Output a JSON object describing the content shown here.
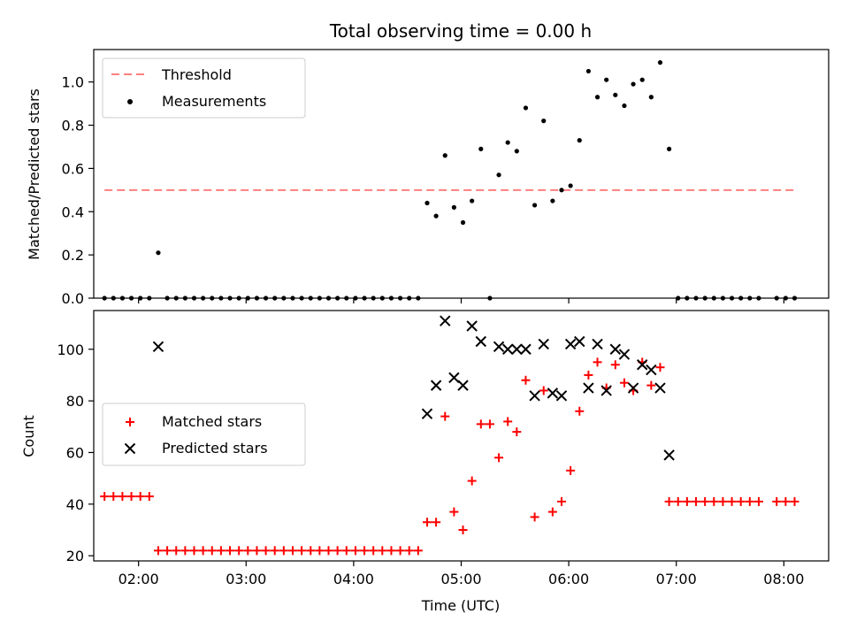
{
  "chart_data": [
    {
      "type": "scatter",
      "title": "Total observing time = 0.00 h",
      "xlabel": "",
      "ylabel": "Matched/Predicted stars",
      "ylim": [
        0,
        1.15
      ],
      "xlim": [
        "01:35",
        "08:25"
      ],
      "yticks": [
        "0.0",
        "0.2",
        "0.4",
        "0.6",
        "0.8",
        "1.0"
      ],
      "legend_position": "top-left",
      "threshold": {
        "name": "Threshold",
        "value": 0.5,
        "x_start": "01:41",
        "x_end": "08:06",
        "color": "#ff7f7f"
      },
      "series": [
        {
          "name": "Measurements",
          "color": "#000000",
          "points": [
            [
              "01:41",
              0
            ],
            [
              "01:46",
              0
            ],
            [
              "01:51",
              0
            ],
            [
              "01:56",
              0
            ],
            [
              "02:01",
              0
            ],
            [
              "02:06",
              0
            ],
            [
              "02:11",
              0.21
            ],
            [
              "02:16",
              0
            ],
            [
              "02:21",
              0
            ],
            [
              "02:26",
              0
            ],
            [
              "02:31",
              0
            ],
            [
              "02:36",
              0
            ],
            [
              "02:41",
              0
            ],
            [
              "02:46",
              0
            ],
            [
              "02:51",
              0
            ],
            [
              "02:56",
              0
            ],
            [
              "03:01",
              0
            ],
            [
              "03:06",
              0
            ],
            [
              "03:11",
              0
            ],
            [
              "03:16",
              0
            ],
            [
              "03:21",
              0
            ],
            [
              "03:26",
              0
            ],
            [
              "03:31",
              0
            ],
            [
              "03:36",
              0
            ],
            [
              "03:41",
              0
            ],
            [
              "03:46",
              0
            ],
            [
              "03:51",
              0
            ],
            [
              "03:56",
              0
            ],
            [
              "04:01",
              0
            ],
            [
              "04:06",
              0
            ],
            [
              "04:11",
              0
            ],
            [
              "04:16",
              0
            ],
            [
              "04:21",
              0
            ],
            [
              "04:26",
              0
            ],
            [
              "04:31",
              0
            ],
            [
              "04:36",
              0
            ],
            [
              "04:41",
              0.44
            ],
            [
              "04:46",
              0.38
            ],
            [
              "04:51",
              0.66
            ],
            [
              "04:56",
              0.42
            ],
            [
              "05:01",
              0.35
            ],
            [
              "05:06",
              0.45
            ],
            [
              "05:11",
              0.69
            ],
            [
              "05:16",
              0
            ],
            [
              "05:21",
              0.57
            ],
            [
              "05:26",
              0.72
            ],
            [
              "05:31",
              0.68
            ],
            [
              "05:36",
              0.88
            ],
            [
              "05:41",
              0.43
            ],
            [
              "05:46",
              0.82
            ],
            [
              "05:51",
              0.45
            ],
            [
              "05:56",
              0.5
            ],
            [
              "06:01",
              0.52
            ],
            [
              "06:06",
              0.73
            ],
            [
              "06:11",
              1.05
            ],
            [
              "06:16",
              0.93
            ],
            [
              "06:21",
              1.01
            ],
            [
              "06:26",
              0.94
            ],
            [
              "06:31",
              0.89
            ],
            [
              "06:36",
              0.99
            ],
            [
              "06:41",
              1.01
            ],
            [
              "06:46",
              0.93
            ],
            [
              "06:51",
              1.09
            ],
            [
              "06:56",
              0.69
            ],
            [
              "07:01",
              0
            ],
            [
              "07:06",
              0
            ],
            [
              "07:11",
              0
            ],
            [
              "07:16",
              0
            ],
            [
              "07:21",
              0
            ],
            [
              "07:26",
              0
            ],
            [
              "07:31",
              0
            ],
            [
              "07:36",
              0
            ],
            [
              "07:41",
              0
            ],
            [
              "07:46",
              0
            ],
            [
              "07:56",
              0
            ],
            [
              "08:01",
              0
            ],
            [
              "08:06",
              0
            ]
          ]
        }
      ]
    },
    {
      "type": "scatter",
      "title": "",
      "xlabel": "Time (UTC)",
      "ylabel": "Count",
      "ylim": [
        18,
        115
      ],
      "xlim": [
        "01:35",
        "08:25"
      ],
      "xticks": [
        "02:00",
        "03:00",
        "04:00",
        "05:00",
        "06:00",
        "07:00",
        "08:00"
      ],
      "yticks": [
        "20",
        "40",
        "60",
        "80",
        "100"
      ],
      "legend_position": "center-left",
      "series": [
        {
          "name": "Matched stars",
          "marker": "plus",
          "color": "#ff0000",
          "points": [
            [
              "01:41",
              43
            ],
            [
              "01:46",
              43
            ],
            [
              "01:51",
              43
            ],
            [
              "01:56",
              43
            ],
            [
              "02:01",
              43
            ],
            [
              "02:06",
              43
            ],
            [
              "02:11",
              22
            ],
            [
              "02:16",
              22
            ],
            [
              "02:21",
              22
            ],
            [
              "02:26",
              22
            ],
            [
              "02:31",
              22
            ],
            [
              "02:36",
              22
            ],
            [
              "02:41",
              22
            ],
            [
              "02:46",
              22
            ],
            [
              "02:51",
              22
            ],
            [
              "02:56",
              22
            ],
            [
              "03:01",
              22
            ],
            [
              "03:06",
              22
            ],
            [
              "03:11",
              22
            ],
            [
              "03:16",
              22
            ],
            [
              "03:21",
              22
            ],
            [
              "03:26",
              22
            ],
            [
              "03:31",
              22
            ],
            [
              "03:36",
              22
            ],
            [
              "03:41",
              22
            ],
            [
              "03:46",
              22
            ],
            [
              "03:51",
              22
            ],
            [
              "03:56",
              22
            ],
            [
              "04:01",
              22
            ],
            [
              "04:06",
              22
            ],
            [
              "04:11",
              22
            ],
            [
              "04:16",
              22
            ],
            [
              "04:21",
              22
            ],
            [
              "04:26",
              22
            ],
            [
              "04:31",
              22
            ],
            [
              "04:36",
              22
            ],
            [
              "04:41",
              33
            ],
            [
              "04:46",
              33
            ],
            [
              "04:51",
              74
            ],
            [
              "04:56",
              37
            ],
            [
              "05:01",
              30
            ],
            [
              "05:06",
              49
            ],
            [
              "05:11",
              71
            ],
            [
              "05:16",
              71
            ],
            [
              "05:21",
              58
            ],
            [
              "05:26",
              72
            ],
            [
              "05:31",
              68
            ],
            [
              "05:36",
              88
            ],
            [
              "05:41",
              35
            ],
            [
              "05:46",
              84
            ],
            [
              "05:51",
              37
            ],
            [
              "05:56",
              41
            ],
            [
              "06:01",
              53
            ],
            [
              "06:06",
              76
            ],
            [
              "06:11",
              90
            ],
            [
              "06:16",
              95
            ],
            [
              "06:21",
              85
            ],
            [
              "06:26",
              94
            ],
            [
              "06:31",
              87
            ],
            [
              "06:36",
              84
            ],
            [
              "06:41",
              95
            ],
            [
              "06:46",
              86
            ],
            [
              "06:51",
              93
            ],
            [
              "06:56",
              41
            ],
            [
              "07:01",
              41
            ],
            [
              "07:06",
              41
            ],
            [
              "07:11",
              41
            ],
            [
              "07:16",
              41
            ],
            [
              "07:21",
              41
            ],
            [
              "07:26",
              41
            ],
            [
              "07:31",
              41
            ],
            [
              "07:36",
              41
            ],
            [
              "07:41",
              41
            ],
            [
              "07:46",
              41
            ],
            [
              "07:56",
              41
            ],
            [
              "08:01",
              41
            ],
            [
              "08:06",
              41
            ]
          ]
        },
        {
          "name": "Predicted stars",
          "marker": "x",
          "color": "#000000",
          "points": [
            [
              "02:11",
              101
            ],
            [
              "04:41",
              75
            ],
            [
              "04:46",
              86
            ],
            [
              "04:51",
              111
            ],
            [
              "04:56",
              89
            ],
            [
              "05:01",
              86
            ],
            [
              "05:06",
              109
            ],
            [
              "05:11",
              103
            ],
            [
              "05:21",
              101
            ],
            [
              "05:26",
              100
            ],
            [
              "05:31",
              100
            ],
            [
              "05:36",
              100
            ],
            [
              "05:41",
              82
            ],
            [
              "05:46",
              102
            ],
            [
              "05:51",
              83
            ],
            [
              "05:56",
              82
            ],
            [
              "06:01",
              102
            ],
            [
              "06:06",
              103
            ],
            [
              "06:11",
              85
            ],
            [
              "06:16",
              102
            ],
            [
              "06:21",
              84
            ],
            [
              "06:26",
              100
            ],
            [
              "06:31",
              98
            ],
            [
              "06:36",
              85
            ],
            [
              "06:41",
              94
            ],
            [
              "06:46",
              92
            ],
            [
              "06:51",
              85
            ],
            [
              "06:56",
              59
            ]
          ]
        }
      ]
    }
  ]
}
